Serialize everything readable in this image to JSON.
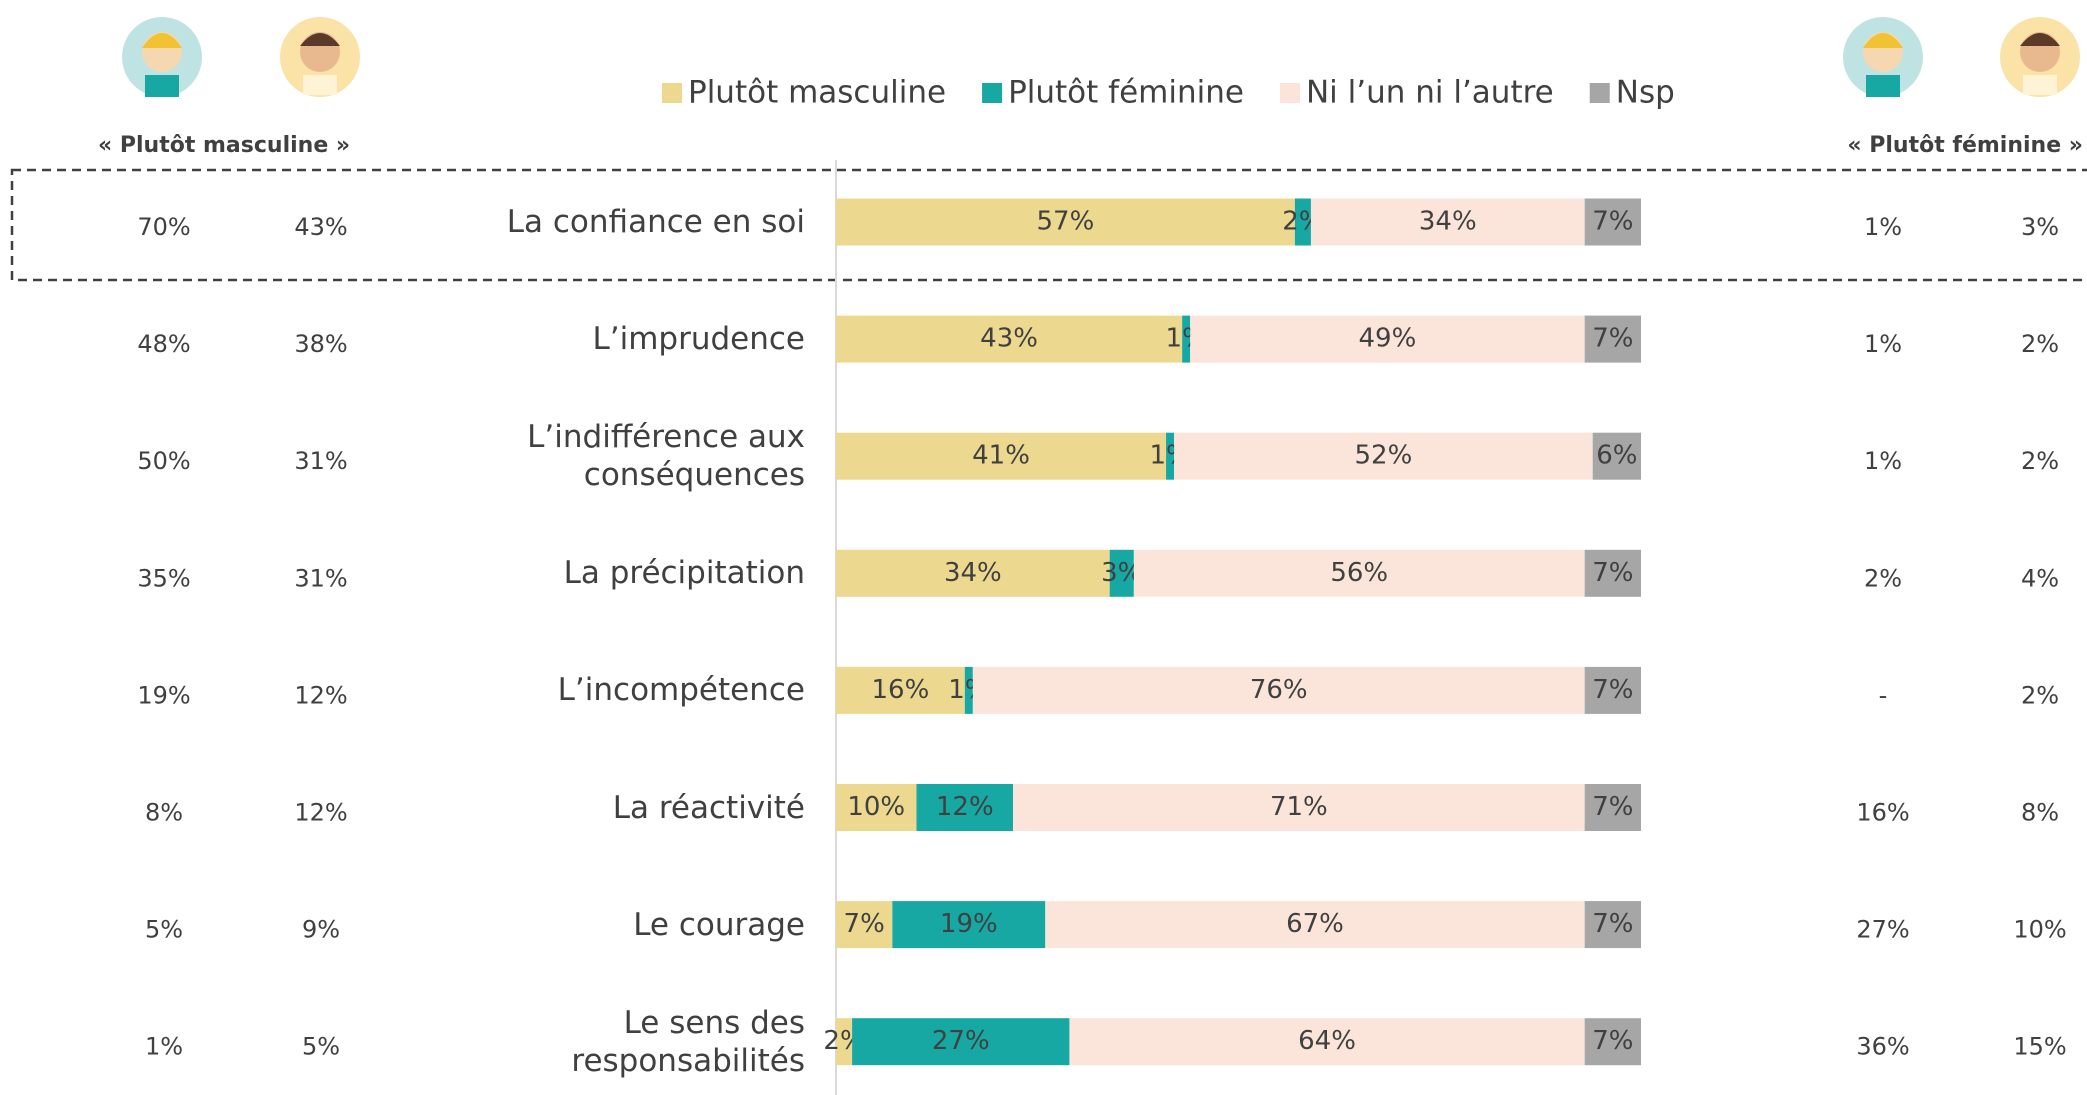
{
  "chart_data": {
    "type": "stacked-bar-horizontal",
    "legend": "top",
    "categories": [
      "La confiance en soi",
      "L’imprudence",
      "L’indifférence aux\nconséquences",
      "La précipitation",
      "L’incompétence",
      "La réactivité",
      "Le courage",
      "Le sens des\nresponsabilités"
    ],
    "xlim": [
      0,
      100
    ],
    "series": [
      {
        "name": "Plutôt masculine",
        "color": "#ecd98f",
        "values": [
          57,
          43,
          41,
          34,
          16,
          10,
          7,
          2
        ],
        "value_labels": [
          "57%",
          "43%",
          "41%",
          "34%",
          "16%",
          "10%",
          "7%",
          "2%"
        ]
      },
      {
        "name": "Plutôt féminine",
        "color": "#17a8a3",
        "values": [
          2,
          1,
          1,
          3,
          1,
          12,
          19,
          27
        ],
        "value_labels": [
          "2%",
          "1%",
          "1%",
          "3%",
          "1%",
          "12%",
          "19%",
          "27%"
        ]
      },
      {
        "name": "Ni l’un ni l’autre",
        "color": "#fbe5da",
        "values": [
          34,
          49,
          52,
          56,
          76,
          71,
          67,
          64
        ],
        "value_labels": [
          "34%",
          "49%",
          "52%",
          "56%",
          "76%",
          "71%",
          "67%",
          "64%"
        ]
      },
      {
        "name": "Nsp",
        "color": "#a6a6a6",
        "values": [
          7,
          7,
          6,
          7,
          7,
          7,
          7,
          7
        ],
        "value_labels": [
          "7%",
          "7%",
          "6%",
          "7%",
          "7%",
          "7%",
          "7%",
          "7%"
        ]
      }
    ],
    "left_table": {
      "header": "« Plutôt masculine »",
      "rows": [
        [
          "70%",
          "43%"
        ],
        [
          "48%",
          "38%"
        ],
        [
          "50%",
          "31%"
        ],
        [
          "35%",
          "31%"
        ],
        [
          "19%",
          "12%"
        ],
        [
          "8%",
          "12%"
        ],
        [
          "5%",
          "9%"
        ],
        [
          "1%",
          "5%"
        ]
      ]
    },
    "right_table": {
      "header": "« Plutôt féminine »",
      "rows": [
        [
          "1%",
          "3%"
        ],
        [
          "1%",
          "2%"
        ],
        [
          "1%",
          "2%"
        ],
        [
          "2%",
          "4%"
        ],
        [
          "-",
          "2%"
        ],
        [
          "16%",
          "8%"
        ],
        [
          "27%",
          "10%"
        ],
        [
          "36%",
          "15%"
        ]
      ]
    }
  }
}
